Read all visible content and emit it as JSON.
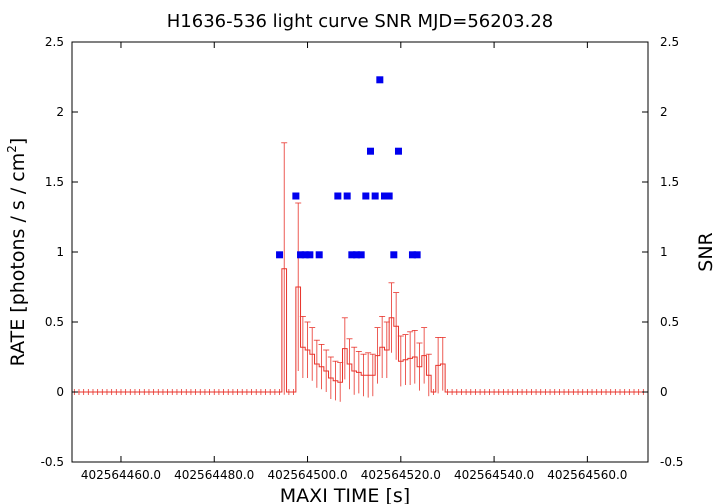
{
  "chart_data": {
    "type": "scatter",
    "title": "H1636-536 light curve  SNR MJD=56203.28",
    "xlabel": "MAXI TIME [s]",
    "ylabel": "RATE [photons / s / cm",
    "ylabel_sup": "2",
    "ylabel_close": "]",
    "y2label": "SNR",
    "xlim": [
      402564449.5,
      402564573.0
    ],
    "ylim": [
      -0.5,
      2.5
    ],
    "y2lim": [
      -0.5,
      2.5
    ],
    "xticks": [
      402564460.0,
      402564480.0,
      402564500.0,
      402564520.0,
      402564540.0,
      402564560.0
    ],
    "xtick_labels": [
      "402564460.0",
      "402564480.0",
      "402564500.0",
      "402564520.0",
      "402564540.0",
      "402564560.0"
    ],
    "yticks": [
      -0.5,
      0,
      0.5,
      1,
      1.5,
      2,
      2.5
    ],
    "ytick_labels": [
      "-0.5",
      "0",
      "0.5",
      "1",
      "1.5",
      "2",
      "2.5"
    ],
    "grid": false,
    "colors": {
      "rate": "#e8332b",
      "snr": "#0000ee",
      "axes": "#000000"
    },
    "series": [
      {
        "type": "rate-with-errorbars",
        "x_start": 402564449.5,
        "x_step": 1.0,
        "y": [
          0,
          0,
          0,
          0,
          0,
          0,
          0,
          0,
          0,
          0,
          0,
          0,
          0,
          0,
          0,
          0,
          0,
          0,
          0,
          0,
          0,
          0,
          0,
          0,
          0,
          0,
          0,
          0,
          0,
          0,
          0,
          0,
          0,
          0,
          0,
          0,
          0,
          0,
          0,
          0,
          0,
          0,
          0,
          0,
          0,
          0.88,
          0,
          0,
          0.75,
          0.32,
          0.3,
          0.27,
          0.2,
          0.18,
          0.15,
          0.1,
          0.08,
          0.07,
          0.31,
          0.2,
          0.15,
          0.14,
          0.12,
          0.12,
          0.12,
          0.26,
          0.32,
          0.3,
          0.53,
          0.47,
          0.22,
          0.23,
          0.24,
          0.25,
          0.18,
          0.26,
          0.12,
          0,
          0.19,
          0.2,
          0,
          0,
          0,
          0,
          0,
          0,
          0,
          0,
          0,
          0,
          0,
          0,
          0,
          0,
          0,
          0,
          0,
          0,
          0,
          0,
          0,
          0,
          0,
          0,
          0,
          0,
          0,
          0,
          0,
          0,
          0,
          0,
          0,
          0,
          0,
          0,
          0,
          0,
          0,
          0,
          0,
          0,
          0
        ],
        "err": [
          0,
          0,
          0,
          0,
          0,
          0,
          0,
          0,
          0,
          0,
          0,
          0,
          0,
          0,
          0,
          0,
          0,
          0,
          0,
          0,
          0,
          0,
          0,
          0,
          0,
          0,
          0,
          0,
          0,
          0,
          0,
          0,
          0,
          0,
          0,
          0,
          0,
          0,
          0,
          0,
          0,
          0,
          0,
          0,
          0,
          0.9,
          0,
          0,
          0.6,
          0.22,
          0.2,
          0.19,
          0.17,
          0.16,
          0.15,
          0.15,
          0.14,
          0.14,
          0.22,
          0.18,
          0.17,
          0.15,
          0.15,
          0.16,
          0.15,
          0.2,
          0.22,
          0.2,
          0.25,
          0.24,
          0.18,
          0.18,
          0.19,
          0.19,
          0.17,
          0.2,
          0.15,
          0,
          0.2,
          0.19,
          0,
          0,
          0,
          0,
          0,
          0,
          0,
          0,
          0,
          0,
          0,
          0,
          0,
          0,
          0,
          0,
          0,
          0,
          0,
          0,
          0,
          0,
          0,
          0,
          0,
          0,
          0,
          0,
          0,
          0,
          0,
          0,
          0,
          0,
          0,
          0,
          0,
          0,
          0,
          0,
          0,
          0,
          0
        ]
      },
      {
        "type": "snr",
        "x": [
          402564494.0,
          402564497.5,
          402564498.5,
          402564499.5,
          402564500.5,
          402564502.5,
          402564506.5,
          402564508.5,
          402564509.5,
          402564510.5,
          402564511.5,
          402564512.5,
          402564513.5,
          402564514.5,
          402564515.5,
          402564516.5,
          402564517.5,
          402564518.5,
          402564519.5,
          402564522.5,
          402564523.5
        ],
        "y": [
          0.98,
          1.4,
          0.98,
          0.98,
          0.98,
          0.98,
          1.4,
          1.4,
          0.98,
          0.98,
          0.98,
          1.4,
          1.72,
          1.4,
          2.23,
          1.4,
          1.4,
          0.98,
          1.72,
          0.98,
          0.98
        ]
      }
    ]
  }
}
